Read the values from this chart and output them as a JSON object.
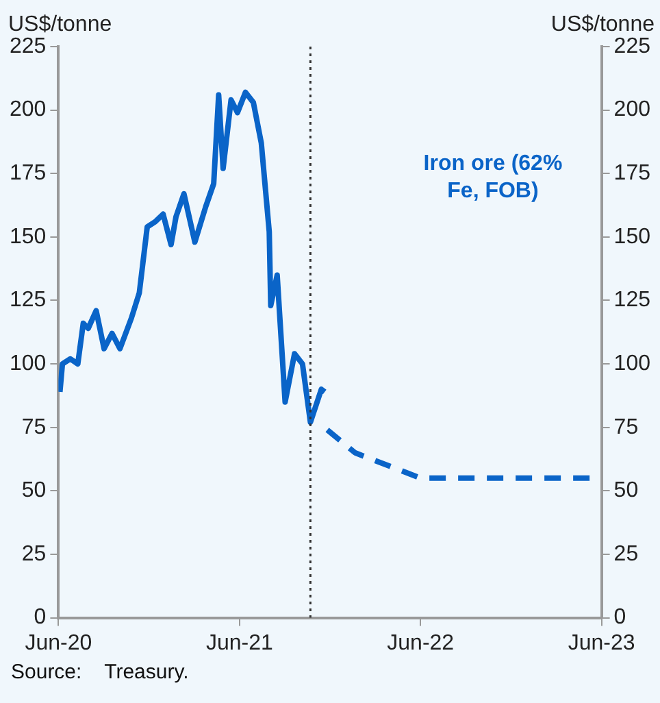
{
  "chart_data": {
    "type": "line",
    "ylabel": "US$/tonne",
    "y2label": "US$/tonne",
    "xlim": [
      "2020-06",
      "2023-06"
    ],
    "xticks": [
      {
        "value": "2020-06",
        "label": "Jun-20"
      },
      {
        "value": "2021-06",
        "label": "Jun-21"
      },
      {
        "value": "2022-06",
        "label": "Jun-22"
      },
      {
        "value": "2023-06",
        "label": "Jun-23"
      }
    ],
    "ylim": [
      0,
      225
    ],
    "yticks": [
      0,
      25,
      50,
      75,
      100,
      125,
      150,
      175,
      200,
      225
    ],
    "y2lim": [
      0,
      225
    ],
    "y2ticks": [
      0,
      25,
      50,
      75,
      100,
      125,
      150,
      175,
      200,
      225
    ],
    "grid": false,
    "legend": false,
    "marker": "none",
    "series": [
      {
        "name": "Iron ore (62% Fe, FOB)",
        "color": "#0a64c8",
        "line_style": "solid",
        "x": [
          "2020-06-04",
          "2020-06-09",
          "2020-06-25",
          "2020-07-10",
          "2020-07-21",
          "2020-07-31",
          "2020-08-16",
          "2020-09-01",
          "2020-09-17",
          "2020-10-03",
          "2020-10-26",
          "2020-11-11",
          "2020-11-27",
          "2020-12-13",
          "2020-12-29",
          "2021-01-14",
          "2021-01-24",
          "2021-02-09",
          "2021-03-03",
          "2021-03-25",
          "2021-04-10",
          "2021-04-20",
          "2021-04-29",
          "2021-05-15",
          "2021-05-28",
          "2021-06-13",
          "2021-06-29",
          "2021-07-15",
          "2021-07-31",
          "2021-08-03",
          "2021-08-16",
          "2021-09-01",
          "2021-09-20",
          "2021-10-06",
          "2021-10-22",
          "2021-11-13",
          "2021-11-20"
        ],
        "values": [
          89,
          100,
          102,
          100,
          116,
          114,
          121,
          106,
          112,
          106,
          118,
          128,
          154,
          156,
          159,
          147,
          158,
          167,
          148,
          162,
          171,
          206,
          177,
          204,
          199,
          207,
          203,
          187,
          152,
          123,
          135,
          85,
          104,
          100,
          77,
          90,
          89
        ]
      },
      {
        "color": "#0a64c8",
        "line_style": "dashed",
        "x": [
          "2021-11-25",
          "2022-01-20",
          "2022-06-01",
          "2023-06-01"
        ],
        "values": [
          74,
          65,
          55,
          55
        ]
      }
    ],
    "ref_lines": [
      {
        "axis": "x",
        "value": "2021-10-22",
        "color": "#333333",
        "line_style": "dotted"
      }
    ],
    "annotations": [
      "Source:    Treasury."
    ]
  }
}
